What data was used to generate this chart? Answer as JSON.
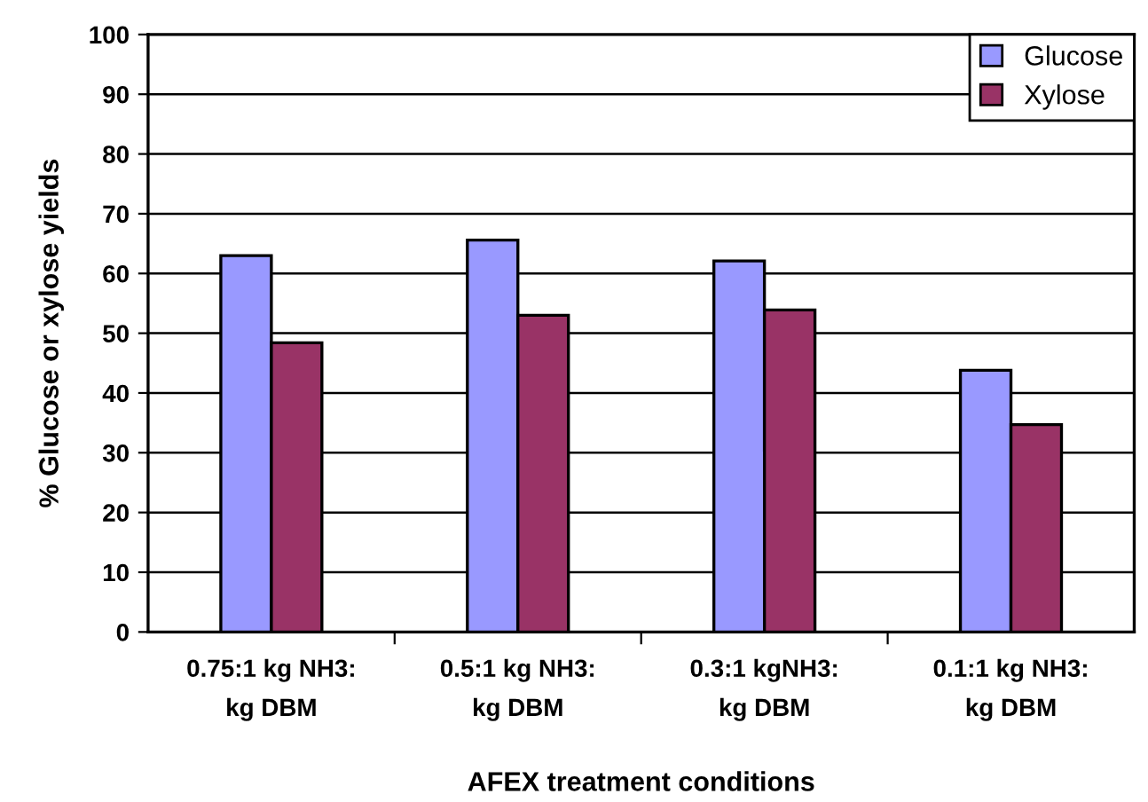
{
  "chart_data": {
    "type": "bar",
    "xlabel": "AFEX treatment conditions",
    "ylabel": "% Glucose or xylose yields",
    "categories": [
      "0.75:1 kg NH3:\nkg DBM",
      "0.5:1 kg NH3:\nkg DBM",
      "0.3:1 kgNH3:\nkg DBM",
      "0.1:1 kg NH3:\nkg DBM"
    ],
    "series": [
      {
        "name": "Glucose",
        "color": "#9999ff",
        "values": [
          63.0,
          65.6,
          62.1,
          43.8
        ]
      },
      {
        "name": "Xylose",
        "color": "#993366",
        "values": [
          48.4,
          53.0,
          53.9,
          34.7
        ]
      }
    ],
    "ylim": [
      0,
      100
    ],
    "yticks": [
      0,
      10,
      20,
      30,
      40,
      50,
      60,
      70,
      80,
      90,
      100
    ],
    "grid": "y",
    "legend": "top right"
  }
}
